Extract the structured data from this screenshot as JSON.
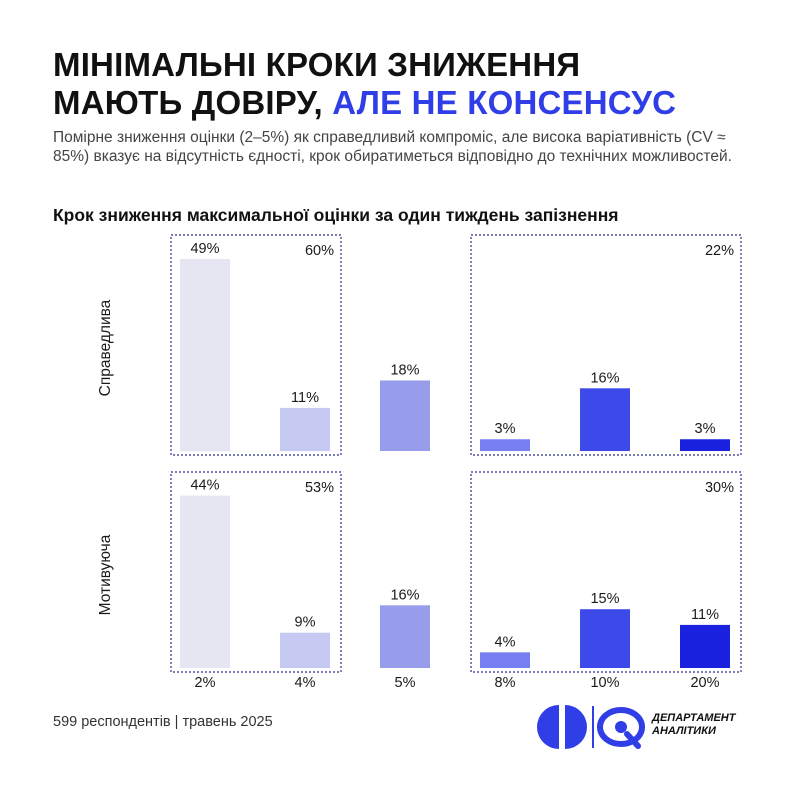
{
  "header": {
    "title_line1": "МІНІМАЛЬНІ КРОКИ ЗНИЖЕННЯ",
    "title_line2_part1": "МАЮТЬ ДОВІРУ, ",
    "title_line2_accent": "АЛЕ НЕ КОНСЕНСУС",
    "subtitle": "Помірне зниження оцінки (2–5%) як справедливий компроміс, але висока варіативність (CV ≈ 85%) вказує на відсутність єдності, крок обиратиметься відповідно до технічних можливостей."
  },
  "chart_data": {
    "type": "bar",
    "title": "Крок зниження максимальної оцінки за один тиждень запізнення",
    "categories": [
      "2%",
      "4%",
      "5%",
      "8%",
      "10%",
      "20%"
    ],
    "ylim": [
      0,
      50
    ],
    "series": [
      {
        "name": "Справедлива",
        "values": [
          49,
          11,
          18,
          3,
          16,
          3
        ],
        "labels": [
          "49%",
          "11%",
          "18%",
          "3%",
          "16%",
          "3%"
        ]
      },
      {
        "name": "Мотивуюча",
        "values": [
          44,
          9,
          16,
          4,
          15,
          11
        ],
        "labels": [
          "44%",
          "9%",
          "16%",
          "4%",
          "15%",
          "11%"
        ]
      }
    ],
    "groups": [
      {
        "range": [
          0,
          1
        ],
        "totals": [
          "60%",
          "53%"
        ]
      },
      {
        "range": [
          3,
          5
        ],
        "totals": [
          "22%",
          "30%"
        ]
      }
    ],
    "bar_colors": [
      "#e6e6f2",
      "#c6c9f1",
      "#979ceb",
      "#777ff0",
      "#3d4ae9",
      "#1a22e0"
    ],
    "legend": "none"
  },
  "colors": {
    "accent": "#2f3ee6",
    "group_border": "#2b2f8a"
  },
  "footer": {
    "source": "599 респондентів | травень 2025",
    "org_name_line1": "ДЕПАРТАМЕНТ",
    "org_name_line2": "АНАЛІТИКИ"
  }
}
